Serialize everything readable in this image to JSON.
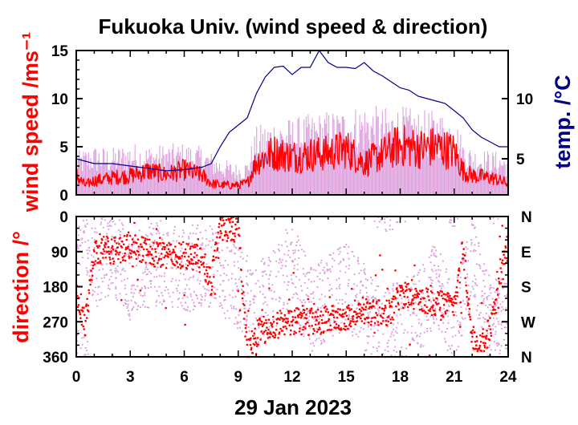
{
  "colors": {
    "wind": "#ff0000",
    "wind_gust": "#dda0dd",
    "temp": "#00008b",
    "frame": "#000000"
  },
  "chart_data": [
    {
      "type": "line",
      "title": "Fukuoka Univ. (wind speed & direction)",
      "ylabel": "wind speed /ms⁻¹",
      "ylabel_right": "temp. /°C",
      "xlim": [
        0,
        24
      ],
      "ylim": [
        0,
        15
      ],
      "ylim_right": [
        2,
        14
      ],
      "yticks": [
        "0",
        "5",
        "10",
        "15"
      ],
      "yticks_right": [
        "5",
        "10"
      ],
      "grid": false,
      "series": [
        {
          "name": "",
          "axis": "left",
          "color": "#ff0000",
          "x": [
            0,
            0.5,
            1,
            1.5,
            2,
            3,
            4,
            5,
            6,
            7,
            7.5,
            8,
            9,
            9.5,
            10,
            11,
            12,
            13,
            14,
            15,
            16,
            17,
            18,
            19,
            20,
            21,
            21.5,
            22,
            23,
            24
          ],
          "values": [
            2.0,
            1.0,
            1.5,
            1.6,
            1.8,
            2.0,
            2.5,
            2.1,
            2.6,
            2.0,
            1.2,
            1.0,
            1.0,
            1.2,
            3.5,
            4.4,
            4.0,
            4.2,
            4.3,
            4.8,
            3.3,
            4.2,
            5.2,
            4.8,
            5.0,
            4.5,
            2.5,
            2.0,
            1.8,
            1.2
          ]
        },
        {
          "name": "",
          "axis": "left",
          "color": "#dda0dd",
          "style": "gust",
          "x": [
            0,
            1,
            2,
            3,
            4,
            5,
            6,
            7,
            8,
            9,
            9.5,
            10,
            11,
            12,
            13,
            14,
            15,
            16,
            17,
            18,
            19,
            20,
            21,
            21.5,
            22,
            23,
            24
          ],
          "values": [
            3.5,
            4.0,
            3.8,
            4.2,
            4.0,
            4.1,
            4.2,
            3.9,
            3.0,
            2.5,
            2.8,
            5.5,
            6.2,
            6.2,
            6.5,
            6.8,
            7.0,
            7.4,
            7.0,
            7.2,
            6.8,
            6.8,
            6.5,
            4.5,
            3.8,
            3.6,
            3.3
          ]
        },
        {
          "name": "",
          "axis": "right",
          "color": "#00008b",
          "x": [
            0,
            0.5,
            1,
            2,
            3,
            4,
            5,
            6,
            7,
            7.5,
            8,
            8.5,
            9,
            9.5,
            10,
            10.5,
            11,
            11.5,
            12,
            12.5,
            13,
            13.5,
            14,
            14.5,
            15,
            15.5,
            16,
            16.5,
            17,
            17.5,
            18,
            18.5,
            19,
            19.5,
            20,
            20.5,
            21,
            21.5,
            22,
            22.5,
            23,
            23.5,
            24
          ],
          "values": [
            5.0,
            4.8,
            4.6,
            4.6,
            4.4,
            4.2,
            4.0,
            4.1,
            4.3,
            4.6,
            6.0,
            7.2,
            7.8,
            8.4,
            10.4,
            11.8,
            12.6,
            12.7,
            12.0,
            12.6,
            12.6,
            14.0,
            13.0,
            12.6,
            12.6,
            12.5,
            13.0,
            12.3,
            11.9,
            11.4,
            10.9,
            10.7,
            10.2,
            10.0,
            9.8,
            9.6,
            9.0,
            8.4,
            7.4,
            6.8,
            6.4,
            6.0,
            6.0
          ]
        }
      ]
    },
    {
      "type": "scatter",
      "ylabel": "direction /°",
      "xlabel": "29 Jan 2023",
      "xlim": [
        0,
        24
      ],
      "ylim": [
        360,
        0
      ],
      "xticks": [
        "0",
        "3",
        "6",
        "9",
        "12",
        "15",
        "18",
        "21",
        "24"
      ],
      "yticks": [
        "0",
        "90",
        "180",
        "270",
        "360"
      ],
      "yticks_right": [
        "N",
        "E",
        "S",
        "W",
        "N"
      ],
      "grid": false,
      "series": [
        {
          "name": "",
          "color": "#ff0000",
          "x": [
            0,
            0.5,
            1,
            1.5,
            2,
            3,
            4,
            5,
            6,
            7,
            7.5,
            8,
            8.5,
            9,
            9.5,
            10,
            11,
            12,
            13,
            14,
            15,
            16,
            17,
            17.5,
            18,
            19,
            20,
            21,
            21.5,
            22,
            22.5,
            23,
            24
          ],
          "values": [
            200,
            280,
            100,
            80,
            90,
            75,
            90,
            100,
            100,
            110,
            170,
            20,
            40,
            30,
            350,
            300,
            280,
            270,
            270,
            265,
            260,
            240,
            250,
            250,
            200,
            215,
            220,
            230,
            80,
            310,
            330,
            290,
            70
          ]
        },
        {
          "name": "",
          "color": "#dda0dd",
          "style": "scatter",
          "x": [
            0.5,
            1,
            2,
            3,
            4,
            5,
            6,
            7,
            8,
            9,
            10,
            11,
            12,
            13,
            14,
            15,
            16,
            17,
            18,
            19,
            20,
            21,
            22,
            23
          ],
          "values": [
            40,
            130,
            90,
            160,
            125,
            115,
            140,
            120,
            150,
            185,
            220,
            190,
            120,
            240,
            210,
            180,
            230,
            300,
            270,
            250,
            160,
            300,
            110,
            270
          ]
        }
      ]
    }
  ]
}
